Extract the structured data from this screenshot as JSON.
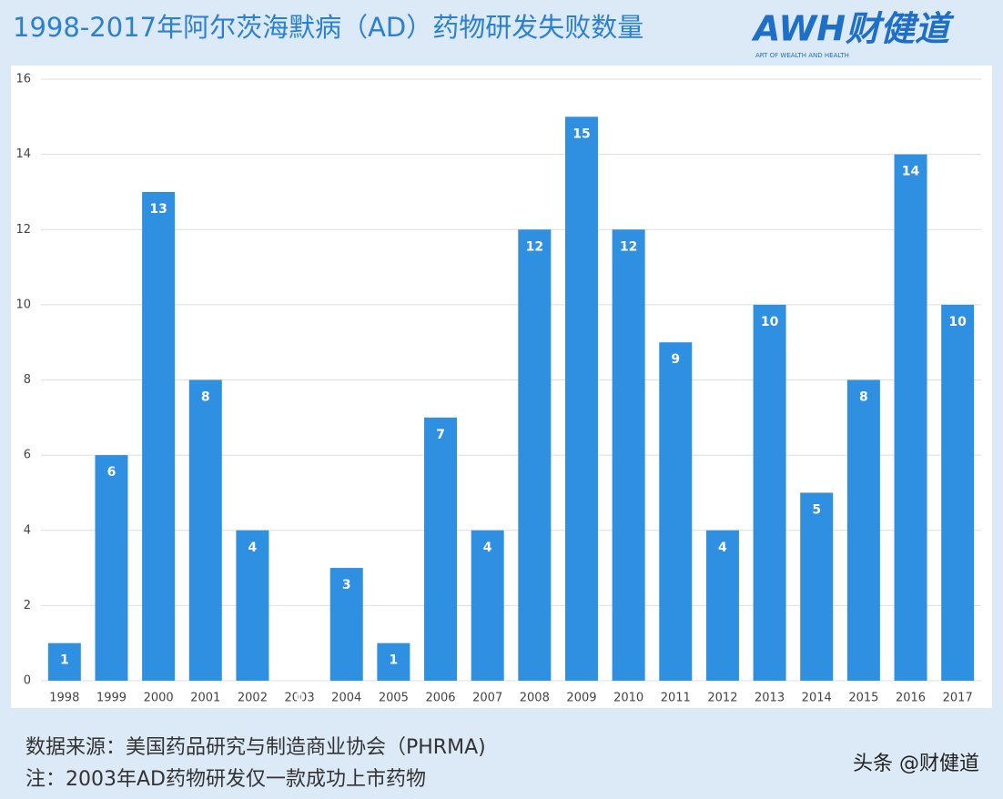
{
  "chart_data": {
    "type": "bar",
    "title": "1998-2017年阿尔茨海默病（AD）药物研发失败数量",
    "logo": "AWH财健道",
    "logo_tagline": "ART OF WEALTH AND HEALTH",
    "categories": [
      "1998",
      "1999",
      "2000",
      "2001",
      "2002",
      "2003",
      "2004",
      "2005",
      "2006",
      "2007",
      "2008",
      "2009",
      "2010",
      "2011",
      "2012",
      "2013",
      "2014",
      "2015",
      "2016",
      "2017"
    ],
    "values": [
      1,
      6,
      13,
      8,
      4,
      0,
      3,
      1,
      7,
      4,
      12,
      15,
      12,
      9,
      4,
      10,
      5,
      8,
      14,
      10
    ],
    "color": "#2f8fe0",
    "ylim": [
      0,
      16
    ],
    "yticks": [
      0,
      2,
      4,
      6,
      8,
      10,
      12,
      14,
      16
    ],
    "grid": true,
    "notes": [
      "数据来源：美国药品研究与制造商业协会（PHRMA)",
      "注：2003年AD药物研发仅一款成功上市药物"
    ],
    "watermark": "头条 @财健道"
  }
}
